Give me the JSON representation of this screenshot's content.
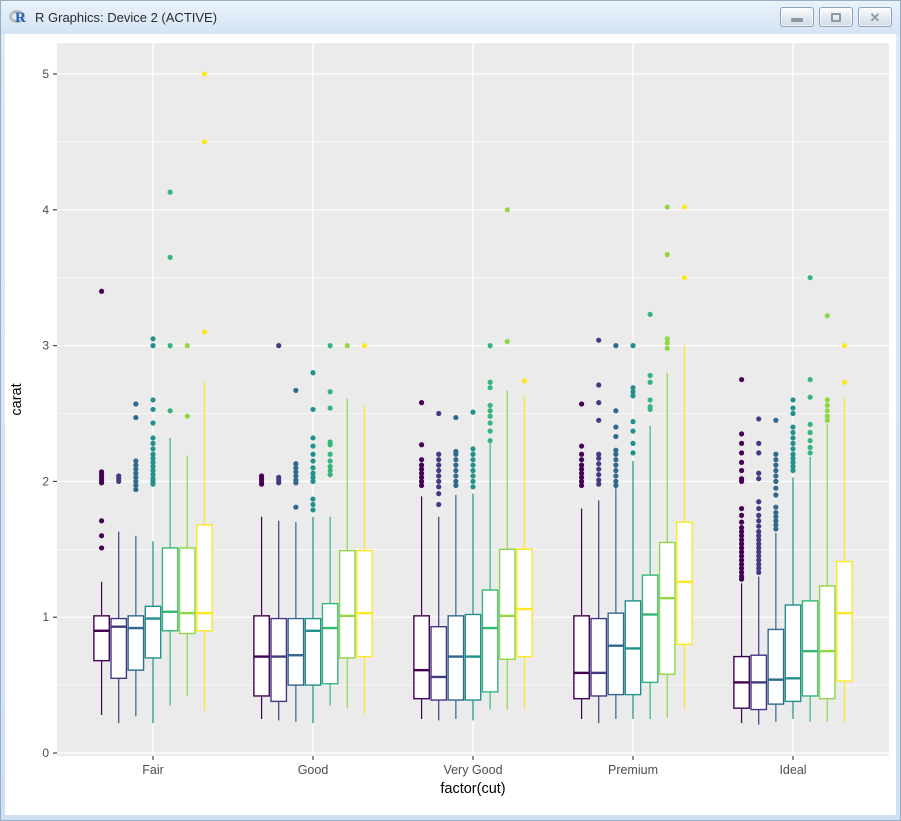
{
  "window": {
    "title": "R Graphics: Device 2 (ACTIVE)",
    "controls": [
      {
        "name": "minimize"
      },
      {
        "name": "maximize"
      },
      {
        "name": "close"
      }
    ]
  },
  "chart_data": {
    "type": "boxplot",
    "title": "",
    "xlabel": "factor(cut)",
    "ylabel": "carat",
    "ylim": [
      -0.05,
      5.25
    ],
    "grid": "on",
    "legend": "none",
    "panel_bg": "#EBEBEB",
    "grid_color": "#FFFFFF",
    "tick_label_color": "#4D4D4D",
    "axis_title_color": "#000000",
    "y_axis": {
      "title": "carat",
      "ticks": [
        0,
        1,
        2,
        3,
        4,
        5
      ],
      "minor": [
        0.5,
        1.5,
        2.5,
        3.5,
        4.5
      ]
    },
    "x_axis": {
      "title": "factor(cut)",
      "categories": [
        "Fair",
        "Good",
        "Very Good",
        "Premium",
        "Ideal"
      ]
    },
    "palette": [
      "#440154",
      "#443983",
      "#31688E",
      "#21918C",
      "#35B779",
      "#90D743",
      "#FDE725"
    ],
    "groups": [
      {
        "label": "Fair",
        "boxes": [
          {
            "c": 0,
            "low": 0.28,
            "q1": 0.68,
            "med": 0.9,
            "q3": 1.01,
            "high": 1.26,
            "out": [
              1.51,
              1.6,
              1.71,
              1.99,
              2.01,
              2.03,
              2.05,
              2.07,
              3.4
            ]
          },
          {
            "c": 1,
            "low": 0.22,
            "q1": 0.55,
            "med": 0.93,
            "q3": 0.99,
            "high": 1.63,
            "out": [
              2.0,
              2.02,
              2.04
            ]
          },
          {
            "c": 2,
            "low": 0.27,
            "q1": 0.61,
            "med": 0.92,
            "q3": 1.01,
            "high": 1.6,
            "out": [
              1.94,
              1.97,
              2.0,
              2.03,
              2.06,
              2.09,
              2.12,
              2.15,
              2.47,
              2.57
            ]
          },
          {
            "c": 3,
            "low": 0.22,
            "q1": 0.7,
            "med": 0.99,
            "q3": 1.08,
            "high": 1.56,
            "out": [
              1.98,
              2.0,
              2.02,
              2.05,
              2.08,
              2.11,
              2.14,
              2.17,
              2.2,
              2.24,
              2.28,
              2.32,
              2.43,
              2.53,
              2.6,
              3.0,
              3.05
            ]
          },
          {
            "c": 4,
            "low": 0.35,
            "q1": 0.9,
            "med": 1.04,
            "q3": 1.51,
            "high": 2.32,
            "out": [
              2.52,
              3.0,
              3.65,
              4.13
            ]
          },
          {
            "c": 5,
            "low": 0.42,
            "q1": 0.88,
            "med": 1.03,
            "q3": 1.51,
            "high": 2.19,
            "out": [
              2.48,
              3.0
            ]
          },
          {
            "c": 6,
            "low": 0.31,
            "q1": 0.9,
            "med": 1.03,
            "q3": 1.68,
            "high": 2.74,
            "out": [
              3.1,
              4.5,
              5.0
            ]
          }
        ]
      },
      {
        "label": "Good",
        "boxes": [
          {
            "c": 0,
            "low": 0.25,
            "q1": 0.42,
            "med": 0.71,
            "q3": 1.01,
            "high": 1.74,
            "out": [
              1.98,
              2.0,
              2.02,
              2.04
            ]
          },
          {
            "c": 1,
            "low": 0.24,
            "q1": 0.38,
            "med": 0.71,
            "q3": 0.99,
            "high": 1.71,
            "out": [
              1.99,
              2.01,
              2.03,
              3.0
            ]
          },
          {
            "c": 2,
            "low": 0.23,
            "q1": 0.5,
            "med": 0.72,
            "q3": 0.99,
            "high": 1.7,
            "out": [
              1.81,
              1.99,
              2.01,
              2.04,
              2.07,
              2.1,
              2.13,
              2.67
            ]
          },
          {
            "c": 3,
            "low": 0.22,
            "q1": 0.5,
            "med": 0.9,
            "q3": 0.99,
            "high": 1.74,
            "out": [
              1.79,
              1.83,
              1.87,
              2.0,
              2.03,
              2.06,
              2.1,
              2.15,
              2.2,
              2.26,
              2.32,
              2.53,
              2.8
            ]
          },
          {
            "c": 4,
            "low": 0.35,
            "q1": 0.51,
            "med": 0.92,
            "q3": 1.1,
            "high": 1.74,
            "out": [
              2.05,
              2.08,
              2.11,
              2.15,
              2.2,
              2.27,
              2.29,
              2.54,
              2.66,
              3.0
            ]
          },
          {
            "c": 5,
            "low": 0.33,
            "q1": 0.7,
            "med": 1.01,
            "q3": 1.49,
            "high": 2.61,
            "out": [
              3.0
            ]
          },
          {
            "c": 6,
            "low": 0.29,
            "q1": 0.71,
            "med": 1.03,
            "q3": 1.49,
            "high": 2.56,
            "out": [
              3.0
            ]
          }
        ]
      },
      {
        "label": "Very Good",
        "boxes": [
          {
            "c": 0,
            "low": 0.25,
            "q1": 0.4,
            "med": 0.61,
            "q3": 1.01,
            "high": 1.89,
            "out": [
              1.97,
              2.0,
              2.03,
              2.06,
              2.09,
              2.12,
              2.16,
              2.27,
              2.58
            ]
          },
          {
            "c": 1,
            "low": 0.24,
            "q1": 0.39,
            "med": 0.56,
            "q3": 0.93,
            "high": 1.74,
            "out": [
              1.83,
              1.91,
              1.96,
              2.0,
              2.04,
              2.08,
              2.12,
              2.16,
              2.2,
              2.5
            ]
          },
          {
            "c": 2,
            "low": 0.25,
            "q1": 0.39,
            "med": 0.71,
            "q3": 1.01,
            "high": 1.9,
            "out": [
              1.97,
              2.0,
              2.04,
              2.08,
              2.12,
              2.16,
              2.2,
              2.22,
              2.47
            ]
          },
          {
            "c": 3,
            "low": 0.24,
            "q1": 0.39,
            "med": 0.71,
            "q3": 1.02,
            "high": 1.91,
            "out": [
              1.96,
              2.0,
              2.04,
              2.08,
              2.12,
              2.16,
              2.2,
              2.24,
              2.51
            ]
          },
          {
            "c": 4,
            "low": 0.32,
            "q1": 0.45,
            "med": 0.92,
            "q3": 1.2,
            "high": 2.29,
            "out": [
              2.3,
              2.37,
              2.43,
              2.48,
              2.52,
              2.56,
              2.69,
              2.73,
              3.0
            ]
          },
          {
            "c": 5,
            "low": 0.32,
            "q1": 0.69,
            "med": 1.01,
            "q3": 1.5,
            "high": 2.67,
            "out": [
              3.03,
              4.0
            ]
          },
          {
            "c": 6,
            "low": 0.32,
            "q1": 0.71,
            "med": 1.06,
            "q3": 1.5,
            "high": 2.63,
            "out": [
              2.74
            ]
          }
        ]
      },
      {
        "label": "Premium",
        "boxes": [
          {
            "c": 0,
            "low": 0.25,
            "q1": 0.4,
            "med": 0.59,
            "q3": 1.01,
            "high": 1.8,
            "out": [
              1.97,
              2.0,
              2.03,
              2.06,
              2.09,
              2.12,
              2.16,
              2.2,
              2.26,
              2.57
            ]
          },
          {
            "c": 1,
            "low": 0.22,
            "q1": 0.42,
            "med": 0.59,
            "q3": 0.99,
            "high": 1.86,
            "out": [
              1.98,
              2.01,
              2.05,
              2.09,
              2.13,
              2.17,
              2.2,
              2.45,
              2.58,
              2.71,
              3.04
            ]
          },
          {
            "c": 2,
            "low": 0.25,
            "q1": 0.43,
            "med": 0.79,
            "q3": 1.03,
            "high": 1.95,
            "out": [
              1.97,
              2.0,
              2.04,
              2.08,
              2.12,
              2.16,
              2.2,
              2.23,
              2.33,
              2.4,
              2.52,
              3.0
            ]
          },
          {
            "c": 3,
            "low": 0.25,
            "q1": 0.43,
            "med": 0.77,
            "q3": 1.12,
            "high": 2.15,
            "out": [
              2.21,
              2.28,
              2.37,
              2.44,
              2.63,
              2.66,
              2.69,
              3.0
            ]
          },
          {
            "c": 4,
            "low": 0.25,
            "q1": 0.52,
            "med": 1.02,
            "q3": 1.31,
            "high": 2.41,
            "out": [
              2.53,
              2.55,
              2.6,
              2.73,
              2.78,
              3.23
            ]
          },
          {
            "c": 5,
            "low": 0.26,
            "q1": 0.58,
            "med": 1.14,
            "q3": 1.55,
            "high": 2.8,
            "out": [
              2.98,
              3.02,
              3.05,
              3.67,
              4.02
            ]
          },
          {
            "c": 6,
            "low": 0.32,
            "q1": 0.8,
            "med": 1.26,
            "q3": 1.7,
            "high": 3.0,
            "out": [
              3.5,
              4.02
            ]
          }
        ]
      },
      {
        "label": "Ideal",
        "boxes": [
          {
            "c": 0,
            "low": 0.22,
            "q1": 0.33,
            "med": 0.52,
            "q3": 0.71,
            "high": 1.25,
            "out": [
              1.28,
              1.3,
              1.33,
              1.36,
              1.39,
              1.42,
              1.45,
              1.48,
              1.51,
              1.54,
              1.57,
              1.6,
              1.63,
              1.66,
              1.7,
              1.75,
              1.8,
              2.0,
              2.02,
              2.08,
              2.14,
              2.21,
              2.28,
              2.35,
              2.75
            ]
          },
          {
            "c": 1,
            "low": 0.21,
            "q1": 0.32,
            "med": 0.52,
            "q3": 0.72,
            "high": 1.3,
            "out": [
              1.33,
              1.36,
              1.39,
              1.42,
              1.45,
              1.48,
              1.51,
              1.54,
              1.57,
              1.6,
              1.63,
              1.67,
              1.71,
              1.75,
              1.8,
              1.85,
              2.02,
              2.06,
              2.21,
              2.28,
              2.46
            ]
          },
          {
            "c": 2,
            "low": 0.23,
            "q1": 0.36,
            "med": 0.54,
            "q3": 0.91,
            "high": 1.62,
            "out": [
              1.65,
              1.68,
              1.71,
              1.74,
              1.77,
              1.81,
              1.9,
              1.95,
              2.0,
              2.04,
              2.08,
              2.12,
              2.16,
              2.2,
              2.45
            ]
          },
          {
            "c": 3,
            "low": 0.25,
            "q1": 0.38,
            "med": 0.55,
            "q3": 1.09,
            "high": 2.03,
            "out": [
              2.08,
              2.11,
              2.14,
              2.17,
              2.2,
              2.24,
              2.28,
              2.32,
              2.36,
              2.4,
              2.5,
              2.54,
              2.6
            ]
          },
          {
            "c": 4,
            "low": 0.23,
            "q1": 0.42,
            "med": 0.75,
            "q3": 1.12,
            "high": 2.18,
            "out": [
              2.21,
              2.25,
              2.3,
              2.36,
              2.42,
              2.62,
              2.75,
              3.5
            ]
          },
          {
            "c": 5,
            "low": 0.23,
            "q1": 0.4,
            "med": 0.75,
            "q3": 1.23,
            "high": 2.42,
            "out": [
              2.45,
              2.48,
              2.52,
              2.56,
              2.6,
              3.22
            ]
          },
          {
            "c": 6,
            "low": 0.23,
            "q1": 0.53,
            "med": 1.03,
            "q3": 1.41,
            "high": 2.62,
            "out": [
              2.73,
              3.0
            ]
          }
        ]
      }
    ]
  }
}
